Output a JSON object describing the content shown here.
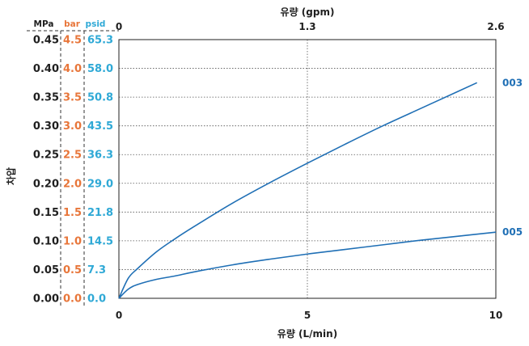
{
  "chart_data": {
    "type": "line",
    "xlabel": "유량 (L/min)",
    "x_ticks": [
      0,
      5,
      10
    ],
    "xlim": [
      0,
      10
    ],
    "x2label": "유량 (gpm)",
    "x2_ticks": [
      "0",
      "1.3",
      "2.6"
    ],
    "ylabel": "차압",
    "ylim": [
      0,
      0.45
    ],
    "y_axes": [
      {
        "unit": "MPa",
        "ticks": [
          "0.45",
          "0.40",
          "0.35",
          "0.30",
          "0.25",
          "0.20",
          "0.15",
          "0.10",
          "0.05",
          "0.00"
        ],
        "color": "#1f1f1f"
      },
      {
        "unit": "bar",
        "ticks": [
          "4.5",
          "4.0",
          "3.5",
          "3.0",
          "2.5",
          "2.0",
          "1.5",
          "1.0",
          "0.5",
          "0.0"
        ],
        "color": "#e8763a"
      },
      {
        "unit": "psid",
        "ticks": [
          "65.3",
          "58.0",
          "50.8",
          "43.5",
          "36.3",
          "29.0",
          "21.8",
          "14.5",
          "7.3",
          "0.0"
        ],
        "color": "#2fa9d6"
      }
    ],
    "grid": true,
    "series": [
      {
        "name": "003",
        "color": "#1f6fb5",
        "x": [
          0,
          0.25,
          0.5,
          1,
          1.5,
          2,
          3,
          4,
          5,
          6,
          7,
          8,
          9,
          9.5
        ],
        "y": [
          0,
          0.035,
          0.052,
          0.081,
          0.104,
          0.125,
          0.165,
          0.201,
          0.235,
          0.268,
          0.3,
          0.33,
          0.36,
          0.375
        ]
      },
      {
        "name": "005",
        "color": "#1f6fb5",
        "x": [
          0,
          0.25,
          0.5,
          1,
          1.5,
          2,
          3,
          4,
          5,
          6,
          7,
          8,
          9,
          10
        ],
        "y": [
          0,
          0.016,
          0.024,
          0.033,
          0.039,
          0.046,
          0.058,
          0.068,
          0.077,
          0.085,
          0.093,
          0.101,
          0.108,
          0.115
        ]
      }
    ]
  }
}
